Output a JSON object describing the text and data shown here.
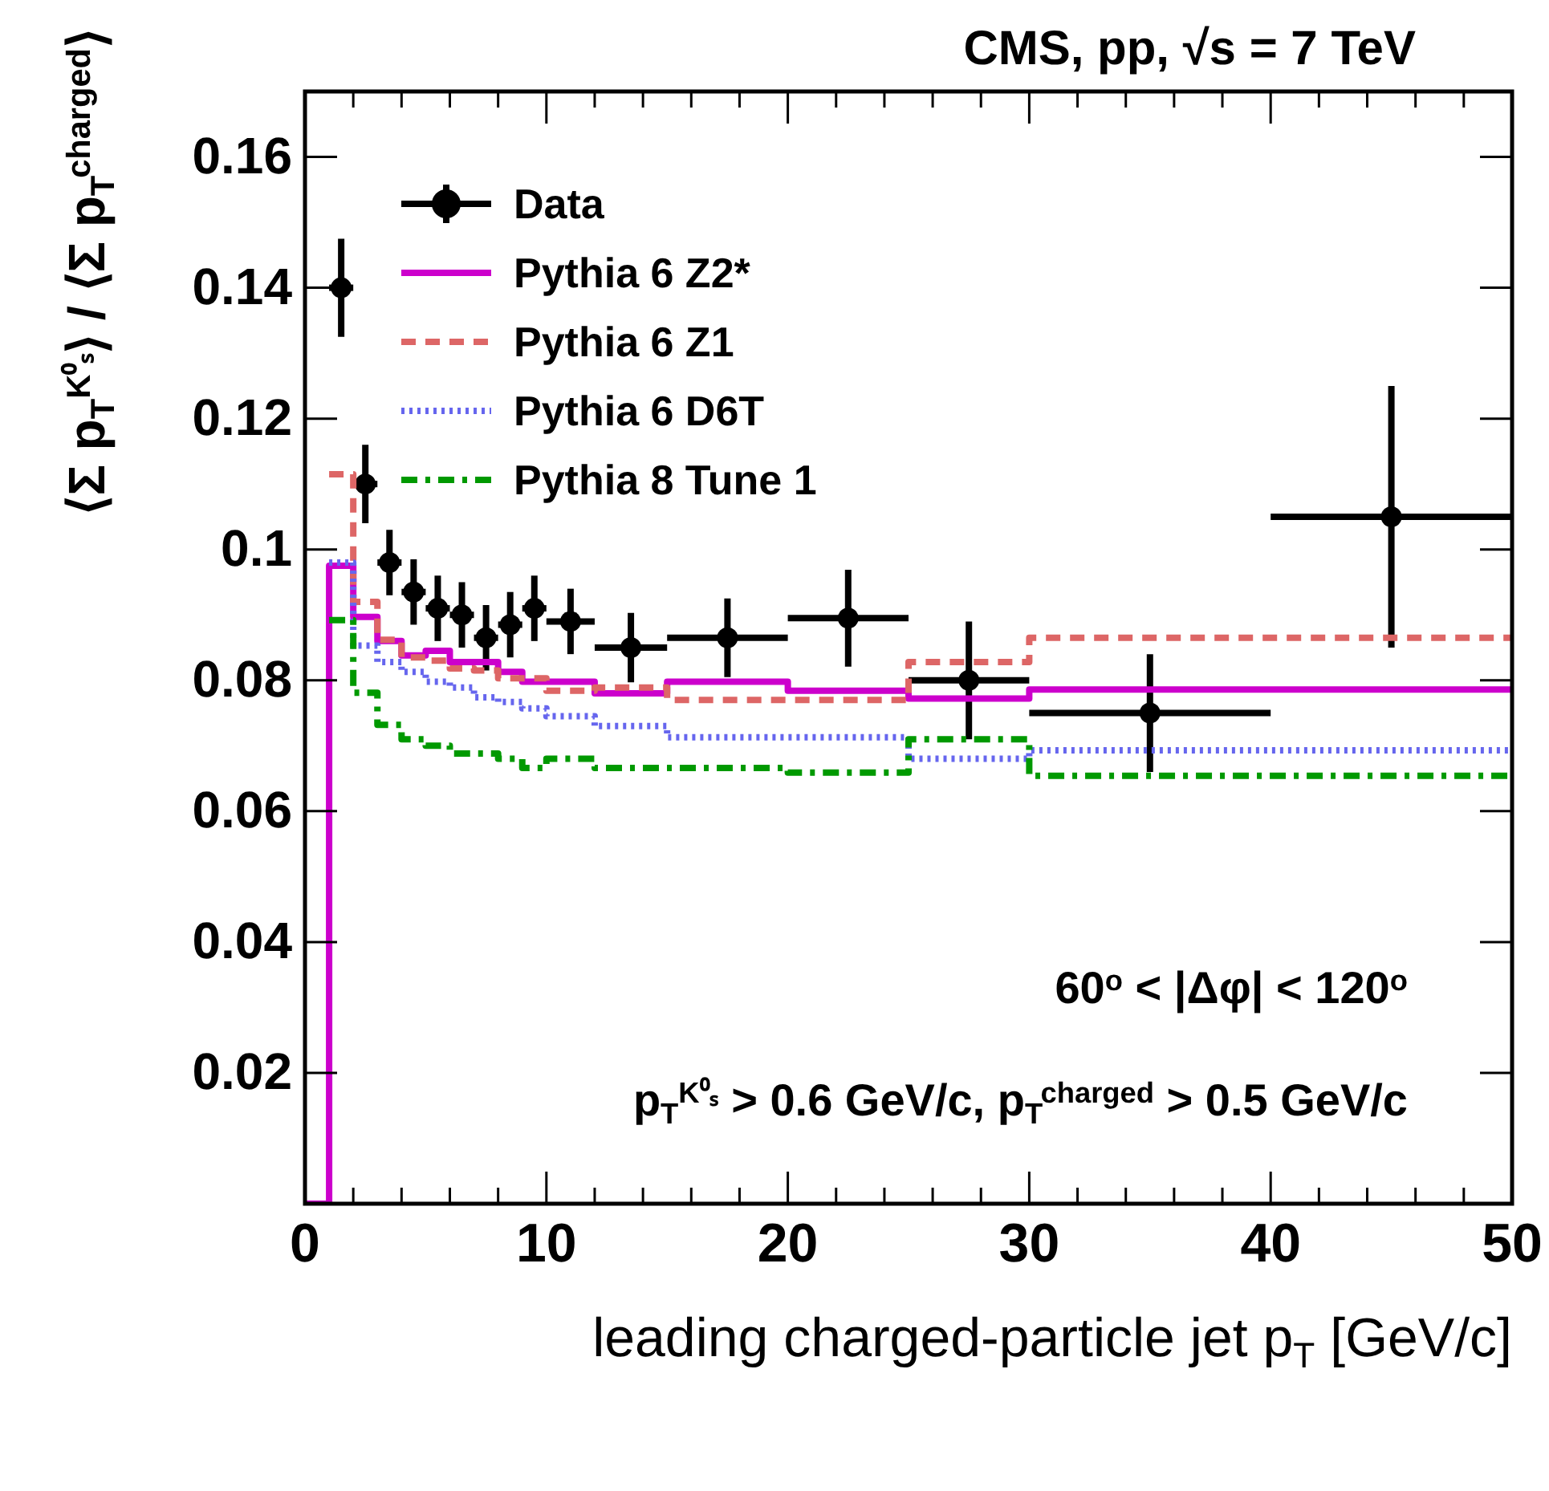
{
  "chart_data": {
    "type": "step",
    "title": "CMS, pp, √s = 7 TeV",
    "xlabel": "leading charged-particle jet p$_{T}$ [GeV/c]",
    "ylabel": "⟨Σ p$_{T}$$^{K⁰ₛ}$⟩ / ⟨Σ p$_{T}$$^{charged}$⟩",
    "annotations": [
      "60$^{o}$ < |Δφ| < 120$^{o}$",
      "p$_{T}$$^{K⁰ₛ}$ > 0.6 GeV/c, p$_{T}$$^{charged}$ > 0.5 GeV/c"
    ],
    "xlim": [
      0,
      50
    ],
    "ylim": [
      0,
      0.17
    ],
    "xticks": [
      0,
      {
        "value": 2,
        "label": null
      },
      {
        "value": 4,
        "label": null
      },
      {
        "value": 6,
        "label": null
      },
      {
        "value": 8,
        "label": null
      },
      10,
      {
        "value": 12,
        "label": null
      },
      {
        "value": 14,
        "label": null
      },
      {
        "value": 16,
        "label": null
      },
      {
        "value": 18,
        "label": null
      },
      20,
      {
        "value": 22,
        "label": null
      },
      {
        "value": 24,
        "label": null
      },
      {
        "value": 26,
        "label": null
      },
      {
        "value": 28,
        "label": null
      },
      30,
      {
        "value": 32,
        "label": null
      },
      {
        "value": 34,
        "label": null
      },
      {
        "value": 36,
        "label": null
      },
      {
        "value": 38,
        "label": null
      },
      40,
      {
        "value": 42,
        "label": null
      },
      {
        "value": 44,
        "label": null
      },
      {
        "value": 46,
        "label": null
      },
      {
        "value": 48,
        "label": null
      },
      50
    ],
    "yticks": [
      0.02,
      0.04,
      0.06,
      0.08,
      0.1,
      0.12,
      0.14,
      0.16
    ],
    "legend": "top left",
    "series": [
      {
        "name": "Data",
        "type": "scatter",
        "color": "#000000",
        "marker": "circle",
        "x": [
          1.5,
          2.5,
          3.5,
          4.5,
          5.5,
          6.5,
          7.5,
          8.5,
          9.5,
          11,
          13.5,
          17.5,
          22.5,
          27.5,
          35,
          45
        ],
        "values": [
          0.14,
          0.11,
          0.098,
          0.0935,
          0.091,
          0.09,
          0.0865,
          0.0885,
          0.091,
          0.089,
          0.085,
          0.0865,
          0.0895,
          0.08,
          0.075,
          0.105
        ],
        "errors": [
          0.0075,
          0.006,
          0.005,
          0.005,
          0.005,
          0.005,
          0.005,
          0.005,
          0.005,
          0.005,
          0.0053,
          0.006,
          0.0074,
          0.009,
          0.009,
          0.02
        ],
        "xerrors": [
          0.5,
          0.5,
          0.5,
          0.5,
          0.5,
          0.5,
          0.5,
          0.5,
          0.5,
          1,
          1.5,
          2.5,
          2.5,
          2.5,
          5,
          5
        ]
      },
      {
        "name": "Pythia 6 Z2*",
        "type": "step",
        "color": "#cc00cc",
        "line_style": "solid",
        "x": [
          0,
          1,
          2,
          3,
          4,
          5,
          6,
          7,
          8,
          9,
          10,
          12,
          15,
          20,
          25,
          30,
          50
        ],
        "values": [
          0,
          0.0975,
          0.0897,
          0.086,
          0.0838,
          0.0845,
          0.0828,
          0.0828,
          0.0813,
          0.0798,
          0.0798,
          0.078,
          0.0798,
          0.0784,
          0.0772,
          0.0786,
          0.0786
        ]
      },
      {
        "name": "Pythia 6 Z1",
        "type": "step",
        "color": "#dd6666",
        "line_style": "dashed",
        "x": [
          1,
          2,
          3,
          4,
          5,
          6,
          7,
          8,
          9,
          10,
          12,
          15,
          20,
          25,
          30,
          50
        ],
        "values": [
          0.1115,
          0.092,
          0.0862,
          0.0835,
          0.083,
          0.0818,
          0.0815,
          0.0803,
          0.0803,
          0.0784,
          0.0789,
          0.077,
          0.077,
          0.0828,
          0.0865,
          0.0865
        ]
      },
      {
        "name": "Pythia 6 D6T",
        "type": "step",
        "color": "#6666ee",
        "line_style": "dotted",
        "x": [
          1,
          2,
          3,
          4,
          5,
          6,
          7,
          8,
          9,
          10,
          12,
          15,
          20,
          25,
          30,
          50
        ],
        "values": [
          0.098,
          0.0853,
          0.0828,
          0.0813,
          0.0798,
          0.0789,
          0.0774,
          0.0767,
          0.0757,
          0.0745,
          0.073,
          0.0713,
          0.0713,
          0.068,
          0.0693,
          0.0693
        ]
      },
      {
        "name": "Pythia 8 Tune 1",
        "type": "step",
        "color": "#009900",
        "line_style": "dashdot",
        "x": [
          1,
          2,
          3,
          4,
          5,
          6,
          7,
          8,
          9,
          10,
          12,
          15,
          20,
          25,
          30,
          50
        ],
        "values": [
          0.0892,
          0.0781,
          0.0732,
          0.071,
          0.07,
          0.0688,
          0.0688,
          0.068,
          0.0666,
          0.068,
          0.0666,
          0.0666,
          0.0659,
          0.071,
          0.0654,
          0.0654
        ]
      }
    ]
  }
}
